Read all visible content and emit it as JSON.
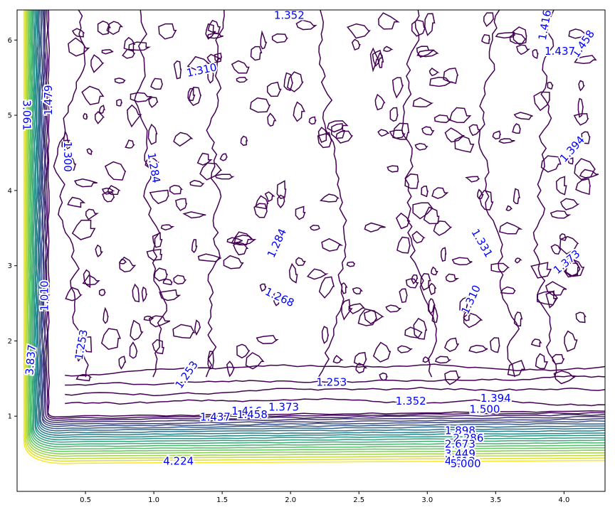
{
  "chart_data": {
    "type": "contour",
    "title": "",
    "xlabel": "",
    "ylabel": "",
    "xlim": [
      0.0,
      4.3
    ],
    "ylim": [
      0.0,
      6.4
    ],
    "xticks": [
      "0.5",
      "1.0",
      "1.5",
      "2.0",
      "2.5",
      "3.0",
      "3.5",
      "4.0"
    ],
    "yticks": [
      "1",
      "2",
      "3",
      "4",
      "5",
      "6"
    ],
    "grid": false,
    "colormap": "viridis",
    "colors": {
      "low": "#440154",
      "mid": "#21918c",
      "high": "#fde725",
      "labels": "#0000ff"
    },
    "contour_labels": [
      {
        "text": "1.352",
        "x": 1.99,
        "y": 6.33,
        "angle": 0
      },
      {
        "text": "1.416",
        "x": 3.86,
        "y": 6.2,
        "angle": 80
      },
      {
        "text": "1.458",
        "x": 4.14,
        "y": 5.95,
        "angle": 55
      },
      {
        "text": "1.437",
        "x": 3.97,
        "y": 5.85,
        "angle": 0
      },
      {
        "text": "1.310",
        "x": 1.35,
        "y": 5.6,
        "angle": 12
      },
      {
        "text": "1.479",
        "x": 0.23,
        "y": 5.2,
        "angle": 90
      },
      {
        "text": "3.061",
        "x": 0.07,
        "y": 5.0,
        "angle": -90
      },
      {
        "text": "1.394",
        "x": 4.06,
        "y": 4.55,
        "angle": 48
      },
      {
        "text": "1.300",
        "x": 0.37,
        "y": 4.45,
        "angle": -90
      },
      {
        "text": "1.284",
        "x": 1.0,
        "y": 4.3,
        "angle": -80
      },
      {
        "text": "1.284",
        "x": 1.9,
        "y": 3.3,
        "angle": 65
      },
      {
        "text": "1.331",
        "x": 3.4,
        "y": 3.3,
        "angle": -60
      },
      {
        "text": "1.373",
        "x": 4.02,
        "y": 3.05,
        "angle": 40
      },
      {
        "text": "1.310",
        "x": 3.32,
        "y": 2.55,
        "angle": 65
      },
      {
        "text": "1.268",
        "x": 1.92,
        "y": 2.58,
        "angle": -25
      },
      {
        "text": "1.010",
        "x": 0.2,
        "y": 2.6,
        "angle": 90
      },
      {
        "text": "1.253",
        "x": 0.47,
        "y": 1.95,
        "angle": 80
      },
      {
        "text": "3.837",
        "x": 0.1,
        "y": 1.75,
        "angle": 85
      },
      {
        "text": "1.253",
        "x": 1.24,
        "y": 1.55,
        "angle": 55
      },
      {
        "text": "1.253",
        "x": 2.3,
        "y": 1.45,
        "angle": 0
      },
      {
        "text": "1.352",
        "x": 2.88,
        "y": 1.2,
        "angle": 0
      },
      {
        "text": "1.394",
        "x": 3.5,
        "y": 1.24,
        "angle": 0
      },
      {
        "text": "1.373",
        "x": 1.95,
        "y": 1.12,
        "angle": 0
      },
      {
        "text": "1.416",
        "x": 1.68,
        "y": 1.07,
        "angle": 0
      },
      {
        "text": "1.458",
        "x": 1.72,
        "y": 1.02,
        "angle": 0
      },
      {
        "text": "1.437",
        "x": 1.45,
        "y": 0.99,
        "angle": 0
      },
      {
        "text": "1.500",
        "x": 3.42,
        "y": 1.09,
        "angle": 0
      },
      {
        "text": "1.898",
        "x": 3.24,
        "y": 0.81,
        "angle": 0
      },
      {
        "text": "2.286",
        "x": 3.3,
        "y": 0.71,
        "angle": 0
      },
      {
        "text": "2.673",
        "x": 3.24,
        "y": 0.63,
        "angle": 0
      },
      {
        "text": "3.449",
        "x": 3.24,
        "y": 0.5,
        "angle": 0
      },
      {
        "text": "4.612",
        "x": 3.24,
        "y": 0.4,
        "angle": 0
      },
      {
        "text": "5.000",
        "x": 3.28,
        "y": 0.37,
        "angle": 0
      },
      {
        "text": "4.224",
        "x": 1.18,
        "y": 0.4,
        "angle": 0
      }
    ]
  }
}
